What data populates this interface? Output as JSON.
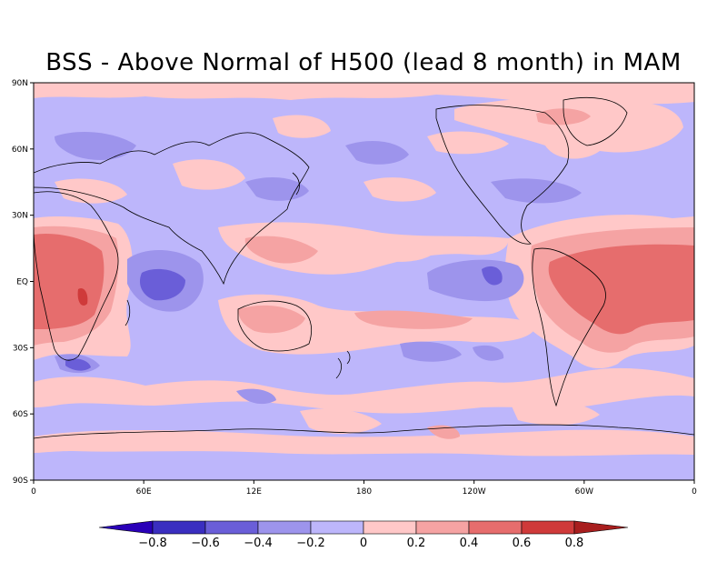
{
  "title": "BSS - Above Normal of H500 (lead 8 month) in MAM",
  "map": {
    "lat_ticks": [
      "90N",
      "60N",
      "30N",
      "EQ",
      "30S",
      "60S",
      "90S"
    ],
    "lon_ticks": [
      "0",
      "60E",
      "12E",
      "180",
      "120W",
      "60W",
      "0"
    ]
  },
  "colorbar": {
    "labels": [
      "−0.8",
      "−0.6",
      "−0.4",
      "−0.2",
      "0",
      "0.2",
      "0.4",
      "0.6",
      "0.8"
    ],
    "colors": {
      "below_-0.8": "#2a00b8",
      "-0.8_-0.6": "#3a2ec0",
      "-0.6_-0.4": "#6a5ed8",
      "-0.4_-0.2": "#9d94ec",
      "-0.2_0": "#bdb6fb",
      "0_0.2": "#ffc8c8",
      "0.2_0.4": "#f5a3a3",
      "0.4_0.6": "#e66d6d",
      "0.6_0.8": "#cf3a3a",
      "above_0.8": "#a81e1e"
    }
  }
}
